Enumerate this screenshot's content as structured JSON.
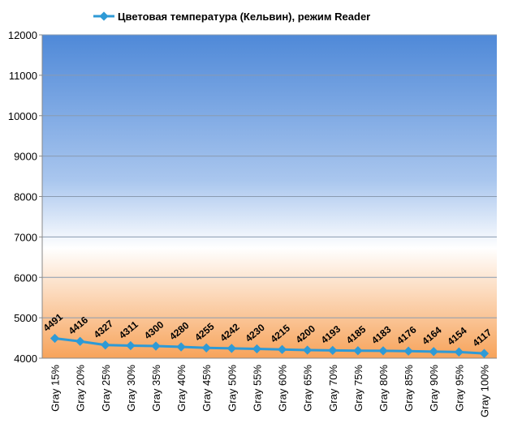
{
  "chart_data": {
    "type": "line",
    "categories": [
      "Gray 15%",
      "Gray 20%",
      "Gray 25%",
      "Gray 30%",
      "Gray 35%",
      "Gray 40%",
      "Gray 45%",
      "Gray 50%",
      "Gray 55%",
      "Gray 60%",
      "Gray 65%",
      "Gray 70%",
      "Gray 75%",
      "Gray 80%",
      "Gray 85%",
      "Gray 90%",
      "Gray 95%",
      "Gray 100%"
    ],
    "series": [
      {
        "name": "Цветовая температура (Кельвин), режим Reader",
        "color": "#2e9ad6",
        "values": [
          4491,
          4416,
          4327,
          4311,
          4300,
          4280,
          4255,
          4242,
          4230,
          4215,
          4200,
          4193,
          4185,
          4183,
          4176,
          4164,
          4154,
          4117
        ]
      }
    ],
    "ylim": [
      4000,
      12000
    ],
    "yticks": [
      4000,
      5000,
      6000,
      7000,
      8000,
      9000,
      10000,
      11000,
      12000
    ],
    "grid": true,
    "legend": "top",
    "data_labels": true
  }
}
